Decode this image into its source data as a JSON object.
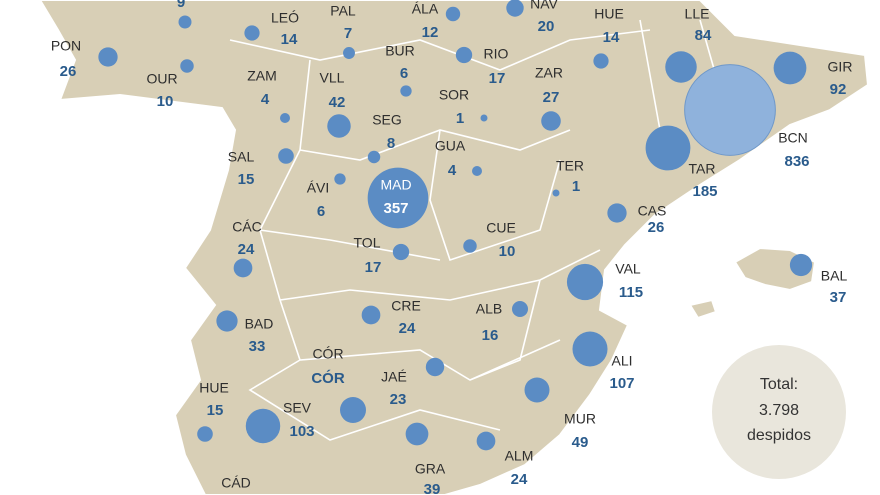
{
  "provinces": [
    {
      "label": null,
      "value": 9
    },
    {
      "label": "LEÓ",
      "value": 14
    },
    {
      "label": "PAL",
      "value": 7
    },
    {
      "label": "ÁLA",
      "value": 12
    },
    {
      "label": "NAV",
      "value": 20
    },
    {
      "label": "HUE",
      "value": 14
    },
    {
      "label": "LLE",
      "value": 84
    },
    {
      "label": "GIR",
      "value": 92
    },
    {
      "label": "PON",
      "value": 26
    },
    {
      "label": "OUR",
      "value": 10
    },
    {
      "label": "ZAM",
      "value": 4
    },
    {
      "label": "VLL",
      "value": 42
    },
    {
      "label": "BUR",
      "value": 6
    },
    {
      "label": "RIO",
      "value": 17
    },
    {
      "label": "ZAR",
      "value": 27
    },
    {
      "label": "SOR",
      "value": 1
    },
    {
      "label": "SEG",
      "value": 8
    },
    {
      "label": "GUA",
      "value": 4
    },
    {
      "label": "SAL",
      "value": 15
    },
    {
      "label": "ÁVI",
      "value": 6
    },
    {
      "label": "MAD",
      "value": 357
    },
    {
      "label": "TER",
      "value": 1
    },
    {
      "label": "BCN",
      "value": 836
    },
    {
      "label": "TAR",
      "value": 185
    },
    {
      "label": "CAS",
      "value": 26
    },
    {
      "label": "CÁC",
      "value": 24
    },
    {
      "label": "TOL",
      "value": 17
    },
    {
      "label": "CUE",
      "value": 10
    },
    {
      "label": "VAL",
      "value": 115
    },
    {
      "label": "BAL",
      "value": 37
    },
    {
      "label": "BAD",
      "value": 33
    },
    {
      "label": "CRE",
      "value": 24
    },
    {
      "label": "ALB",
      "value": 16
    },
    {
      "label": "ALI",
      "value": 107
    },
    {
      "label": "CÓR",
      "value": "CÓR"
    },
    {
      "label": "JAÉ",
      "value": 23
    },
    {
      "label": "HUE",
      "value": 15
    },
    {
      "label": "SEV",
      "value": 103
    },
    {
      "label": "MUR",
      "value": 49
    },
    {
      "label": "ALM",
      "value": 24
    },
    {
      "label": "GRA",
      "value": 39
    },
    {
      "label": "CÁD"
    }
  ],
  "total": {
    "label": "Total:",
    "value": "3.798",
    "unit": "despidos"
  }
}
